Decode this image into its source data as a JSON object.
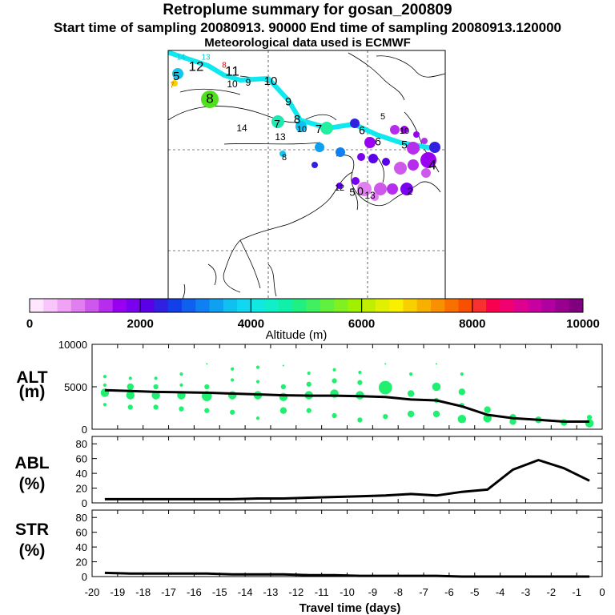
{
  "header": {
    "title": "Retroplume summary for gosan_200809",
    "sampling": "Start time of sampling 20080913. 90000     End time of sampling 20080913.120000",
    "met": "Meteorological data used is ECMWF"
  },
  "colorbar": {
    "ticks": [
      "0",
      "2000",
      "4000",
      "6000",
      "8000",
      "10000"
    ],
    "label": "Altitude  (m)",
    "colors": [
      "#ffe6ff",
      "#f8c6fa",
      "#f0a3f5",
      "#e17ef0",
      "#cf58ec",
      "#b62ded",
      "#9a00f0",
      "#7a00f0",
      "#5a00e8",
      "#3020e0",
      "#1040e8",
      "#1060f0",
      "#1080f0",
      "#10a0f0",
      "#10c0f0",
      "#10d8f0",
      "#10e8e0",
      "#10f0c8",
      "#10f0a8",
      "#20f080",
      "#40f060",
      "#60f040",
      "#80f020",
      "#a0f000",
      "#c0f000",
      "#e0f000",
      "#f8f000",
      "#f8d000",
      "#f8b000",
      "#f89000",
      "#f87000",
      "#f85000",
      "#f83030",
      "#f80050",
      "#f00070",
      "#e00090",
      "#c800a0",
      "#b000a0",
      "#980090",
      "#800080"
    ]
  },
  "map": {
    "labels": [
      {
        "t": "14",
        "color": "#10c8d8"
      },
      {
        "t": "13",
        "color": "#10c8d8"
      },
      {
        "t": "12",
        "color": "#000"
      },
      {
        "t": "8",
        "color": "#e00000"
      },
      {
        "t": "5",
        "color": "#000"
      },
      {
        "t": "7",
        "color": "#c08000"
      },
      {
        "t": "11",
        "color": "#000"
      },
      {
        "t": "10",
        "color": "#000"
      },
      {
        "t": "9",
        "color": "#000"
      },
      {
        "t": "10",
        "color": "#000"
      },
      {
        "t": "8",
        "color": "#000"
      },
      {
        "t": "9",
        "color": "#000"
      },
      {
        "t": "8",
        "color": "#000"
      },
      {
        "t": "7",
        "color": "#000"
      },
      {
        "t": "6",
        "color": "#000"
      },
      {
        "t": "6",
        "color": "#000"
      },
      {
        "t": "5",
        "color": "#000"
      },
      {
        "t": "4",
        "color": "#000"
      },
      {
        "t": "14",
        "color": "#000"
      },
      {
        "t": "7",
        "color": "#000"
      },
      {
        "t": "13",
        "color": "#000"
      },
      {
        "t": "10",
        "color": "#000"
      },
      {
        "t": "8",
        "color": "#000"
      },
      {
        "t": "5",
        "color": "#000"
      },
      {
        "t": "5",
        "color": "#000"
      },
      {
        "t": "10",
        "color": "#000"
      },
      {
        "t": "12",
        "color": "#000"
      },
      {
        "t": "0",
        "color": "#000"
      },
      {
        "t": "13",
        "color": "#000"
      },
      {
        "t": "2",
        "color": "#000"
      }
    ]
  },
  "chart_data": [
    {
      "type": "scatter",
      "title": "",
      "ylabel": "ALT\n(m)",
      "ylabel_lines": [
        "ALT",
        "(m)"
      ],
      "xlabel": "Travel time (days)",
      "ylim": [
        0,
        10000
      ],
      "yticks": [
        "0",
        "5000",
        "10000"
      ],
      "x": [
        -19.5,
        -18.5,
        -17.5,
        -16.5,
        -15.5,
        -14.5,
        -13.5,
        -12.5,
        -11.5,
        -10.5,
        -9.5,
        -8.5,
        -7.5,
        -6.5,
        -5.5,
        -4.5,
        -3.5,
        -2.5,
        -1.5,
        -0.5
      ],
      "median": [
        4600,
        4500,
        4400,
        4350,
        4300,
        4200,
        4100,
        4000,
        3950,
        3950,
        3900,
        3800,
        3500,
        3400,
        2700,
        1700,
        1300,
        1100,
        900,
        900
      ],
      "clusters": [
        {
          "x": -19.5,
          "y": 6200,
          "s": 2
        },
        {
          "x": -19.5,
          "y": 5200,
          "s": 2
        },
        {
          "x": -19.5,
          "y": 4300,
          "s": 5
        },
        {
          "x": -19.5,
          "y": 2900,
          "s": 2
        },
        {
          "x": -18.5,
          "y": 6000,
          "s": 2
        },
        {
          "x": -18.5,
          "y": 5000,
          "s": 4
        },
        {
          "x": -18.5,
          "y": 4000,
          "s": 5
        },
        {
          "x": -18.5,
          "y": 2600,
          "s": 3
        },
        {
          "x": -17.5,
          "y": 6000,
          "s": 2
        },
        {
          "x": -17.5,
          "y": 5000,
          "s": 3
        },
        {
          "x": -17.5,
          "y": 4000,
          "s": 5
        },
        {
          "x": -17.5,
          "y": 2600,
          "s": 3
        },
        {
          "x": -16.5,
          "y": 6500,
          "s": 2
        },
        {
          "x": -16.5,
          "y": 5200,
          "s": 2
        },
        {
          "x": -16.5,
          "y": 4000,
          "s": 5
        },
        {
          "x": -16.5,
          "y": 2400,
          "s": 3
        },
        {
          "x": -15.5,
          "y": 7700,
          "s": 1
        },
        {
          "x": -15.5,
          "y": 5000,
          "s": 3
        },
        {
          "x": -15.5,
          "y": 3900,
          "s": 6
        },
        {
          "x": -15.5,
          "y": 2200,
          "s": 3
        },
        {
          "x": -14.5,
          "y": 7100,
          "s": 2
        },
        {
          "x": -14.5,
          "y": 5800,
          "s": 2
        },
        {
          "x": -14.5,
          "y": 4000,
          "s": 5
        },
        {
          "x": -14.5,
          "y": 2000,
          "s": 3
        },
        {
          "x": -13.5,
          "y": 7300,
          "s": 2
        },
        {
          "x": -13.5,
          "y": 5600,
          "s": 2
        },
        {
          "x": -13.5,
          "y": 4000,
          "s": 5
        },
        {
          "x": -13.5,
          "y": 1300,
          "s": 2
        },
        {
          "x": -12.5,
          "y": 7500,
          "s": 1
        },
        {
          "x": -12.5,
          "y": 5000,
          "s": 3
        },
        {
          "x": -12.5,
          "y": 3800,
          "s": 5
        },
        {
          "x": -12.5,
          "y": 2200,
          "s": 4
        },
        {
          "x": -11.5,
          "y": 6600,
          "s": 2
        },
        {
          "x": -11.5,
          "y": 5300,
          "s": 3
        },
        {
          "x": -11.5,
          "y": 4000,
          "s": 5
        },
        {
          "x": -11.5,
          "y": 2200,
          "s": 3
        },
        {
          "x": -10.5,
          "y": 7000,
          "s": 2
        },
        {
          "x": -10.5,
          "y": 5700,
          "s": 3
        },
        {
          "x": -10.5,
          "y": 4200,
          "s": 5
        },
        {
          "x": -10.5,
          "y": 1600,
          "s": 3
        },
        {
          "x": -9.5,
          "y": 6700,
          "s": 2
        },
        {
          "x": -9.5,
          "y": 5500,
          "s": 3
        },
        {
          "x": -9.5,
          "y": 4000,
          "s": 5
        },
        {
          "x": -9.5,
          "y": 1100,
          "s": 3
        },
        {
          "x": -8.5,
          "y": 7700,
          "s": 1
        },
        {
          "x": -8.5,
          "y": 4900,
          "s": 8
        },
        {
          "x": -8.5,
          "y": 1500,
          "s": 3
        },
        {
          "x": -7.5,
          "y": 6500,
          "s": 2
        },
        {
          "x": -7.5,
          "y": 4200,
          "s": 4
        },
        {
          "x": -7.5,
          "y": 1800,
          "s": 4
        },
        {
          "x": -6.5,
          "y": 7700,
          "s": 1
        },
        {
          "x": -6.5,
          "y": 5000,
          "s": 5
        },
        {
          "x": -6.5,
          "y": 3400,
          "s": 3
        },
        {
          "x": -6.5,
          "y": 1800,
          "s": 4
        },
        {
          "x": -5.5,
          "y": 6500,
          "s": 2
        },
        {
          "x": -5.5,
          "y": 4400,
          "s": 4
        },
        {
          "x": -5.5,
          "y": 2800,
          "s": 3
        },
        {
          "x": -5.5,
          "y": 1200,
          "s": 5
        },
        {
          "x": -4.5,
          "y": 2300,
          "s": 4
        },
        {
          "x": -4.5,
          "y": 1300,
          "s": 5
        },
        {
          "x": -3.5,
          "y": 1400,
          "s": 4
        },
        {
          "x": -3.5,
          "y": 900,
          "s": 4
        },
        {
          "x": -2.5,
          "y": 1100,
          "s": 4
        },
        {
          "x": -1.5,
          "y": 800,
          "s": 4
        },
        {
          "x": -0.5,
          "y": 1400,
          "s": 3
        },
        {
          "x": -0.5,
          "y": 700,
          "s": 5
        }
      ]
    },
    {
      "type": "line",
      "ylabel": "ABL\n(%)",
      "ylabel_lines": [
        "ABL",
        "(%)"
      ],
      "ylim": [
        0,
        90
      ],
      "yticks": [
        "0",
        "20",
        "40",
        "60",
        "80"
      ],
      "x": [
        -19.5,
        -18.5,
        -17.5,
        -16.5,
        -15.5,
        -14.5,
        -13.5,
        -12.5,
        -11.5,
        -10.5,
        -9.5,
        -8.5,
        -7.5,
        -6.5,
        -5.5,
        -4.5,
        -3.5,
        -2.5,
        -1.5,
        -0.5
      ],
      "values": [
        5,
        5,
        5,
        5,
        5,
        5,
        6,
        6,
        7,
        8,
        9,
        10,
        12,
        10,
        15,
        18,
        45,
        58,
        47,
        30
      ]
    },
    {
      "type": "line",
      "ylabel": "STR\n(%)",
      "ylabel_lines": [
        "STR",
        "(%)"
      ],
      "ylim": [
        0,
        90
      ],
      "yticks": [
        "0",
        "20",
        "40",
        "60",
        "80"
      ],
      "x": [
        -19.5,
        -18.5,
        -17.5,
        -16.5,
        -15.5,
        -14.5,
        -13.5,
        -12.5,
        -11.5,
        -10.5,
        -9.5,
        -8.5,
        -7.5,
        -6.5,
        -5.5,
        -4.5,
        -3.5,
        -2.5,
        -1.5,
        -0.5
      ],
      "values": [
        5,
        4,
        4,
        4,
        4,
        3,
        3,
        3,
        2,
        2,
        1,
        1,
        1,
        1,
        0,
        0,
        0,
        0,
        0,
        0
      ],
      "xticks": [
        "-20",
        "-19",
        "-18",
        "-17",
        "-16",
        "-15",
        "-14",
        "-13",
        "-12",
        "-11",
        "-10",
        "-9",
        "-8",
        "-7",
        "-6",
        "-5",
        "-4",
        "-3",
        "-2",
        "-1",
        "0"
      ]
    }
  ]
}
